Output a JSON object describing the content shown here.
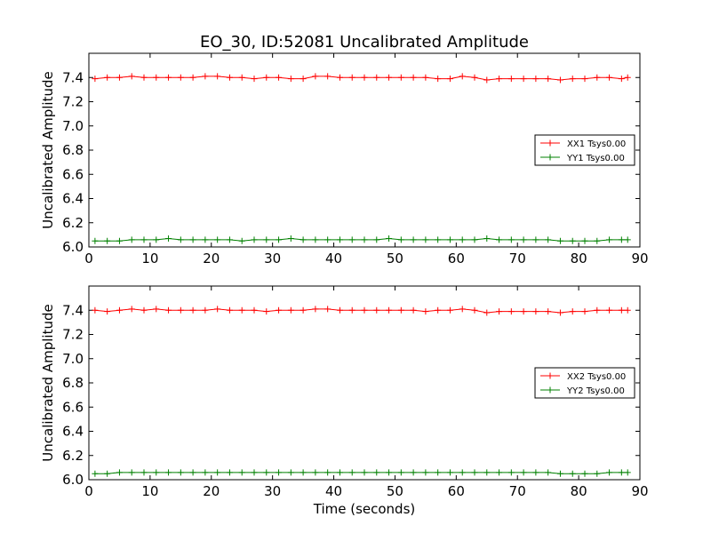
{
  "chart_data": [
    {
      "type": "line",
      "title": "EO_30, ID:52081 Uncalibrated Amplitude",
      "xlabel": "",
      "ylabel": "Uncalibrated Amplitude",
      "xlim": [
        0,
        90
      ],
      "ylim": [
        6.0,
        7.6
      ],
      "xticks": [
        "0",
        "10",
        "20",
        "30",
        "40",
        "50",
        "60",
        "70",
        "80",
        "90"
      ],
      "yticks": [
        "6.0",
        "6.2",
        "6.4",
        "6.6",
        "6.8",
        "7.0",
        "7.2",
        "7.4"
      ],
      "legend": "center-right",
      "series": [
        {
          "name": "XX1 Tsys0.00",
          "color": "#ff0000",
          "x": [
            1,
            3,
            5,
            7,
            9,
            11,
            13,
            15,
            17,
            19,
            21,
            23,
            25,
            27,
            29,
            31,
            33,
            35,
            37,
            39,
            41,
            43,
            45,
            47,
            49,
            51,
            53,
            55,
            57,
            59,
            61,
            63,
            65,
            67,
            69,
            71,
            73,
            75,
            77,
            79,
            81,
            83,
            85,
            87,
            88
          ],
          "y": [
            7.39,
            7.4,
            7.4,
            7.41,
            7.4,
            7.4,
            7.4,
            7.4,
            7.4,
            7.41,
            7.41,
            7.4,
            7.4,
            7.39,
            7.4,
            7.4,
            7.39,
            7.39,
            7.41,
            7.41,
            7.4,
            7.4,
            7.4,
            7.4,
            7.4,
            7.4,
            7.4,
            7.4,
            7.39,
            7.39,
            7.41,
            7.4,
            7.38,
            7.39,
            7.39,
            7.39,
            7.39,
            7.39,
            7.38,
            7.39,
            7.39,
            7.4,
            7.4,
            7.39,
            7.4
          ]
        },
        {
          "name": "YY1 Tsys0.00",
          "color": "#008000",
          "x": [
            1,
            3,
            5,
            7,
            9,
            11,
            13,
            15,
            17,
            19,
            21,
            23,
            25,
            27,
            29,
            31,
            33,
            35,
            37,
            39,
            41,
            43,
            45,
            47,
            49,
            51,
            53,
            55,
            57,
            59,
            61,
            63,
            65,
            67,
            69,
            71,
            73,
            75,
            77,
            79,
            81,
            83,
            85,
            87,
            88
          ],
          "y": [
            6.05,
            6.05,
            6.05,
            6.06,
            6.06,
            6.06,
            6.07,
            6.06,
            6.06,
            6.06,
            6.06,
            6.06,
            6.05,
            6.06,
            6.06,
            6.06,
            6.07,
            6.06,
            6.06,
            6.06,
            6.06,
            6.06,
            6.06,
            6.06,
            6.07,
            6.06,
            6.06,
            6.06,
            6.06,
            6.06,
            6.06,
            6.06,
            6.07,
            6.06,
            6.06,
            6.06,
            6.06,
            6.06,
            6.05,
            6.05,
            6.05,
            6.05,
            6.06,
            6.06,
            6.06
          ]
        }
      ]
    },
    {
      "type": "line",
      "title": "",
      "xlabel": "Time (seconds)",
      "ylabel": "Uncalibrated Amplitude",
      "xlim": [
        0,
        90
      ],
      "ylim": [
        6.0,
        7.6
      ],
      "xticks": [
        "0",
        "10",
        "20",
        "30",
        "40",
        "50",
        "60",
        "70",
        "80",
        "90"
      ],
      "yticks": [
        "6.0",
        "6.2",
        "6.4",
        "6.6",
        "6.8",
        "7.0",
        "7.2",
        "7.4"
      ],
      "legend": "center-right",
      "series": [
        {
          "name": "XX2 Tsys0.00",
          "color": "#ff0000",
          "x": [
            1,
            3,
            5,
            7,
            9,
            11,
            13,
            15,
            17,
            19,
            21,
            23,
            25,
            27,
            29,
            31,
            33,
            35,
            37,
            39,
            41,
            43,
            45,
            47,
            49,
            51,
            53,
            55,
            57,
            59,
            61,
            63,
            65,
            67,
            69,
            71,
            73,
            75,
            77,
            79,
            81,
            83,
            85,
            87,
            88
          ],
          "y": [
            7.4,
            7.39,
            7.4,
            7.41,
            7.4,
            7.41,
            7.4,
            7.4,
            7.4,
            7.4,
            7.41,
            7.4,
            7.4,
            7.4,
            7.39,
            7.4,
            7.4,
            7.4,
            7.41,
            7.41,
            7.4,
            7.4,
            7.4,
            7.4,
            7.4,
            7.4,
            7.4,
            7.39,
            7.4,
            7.4,
            7.41,
            7.4,
            7.38,
            7.39,
            7.39,
            7.39,
            7.39,
            7.39,
            7.38,
            7.39,
            7.39,
            7.4,
            7.4,
            7.4,
            7.4
          ]
        },
        {
          "name": "YY2 Tsys0.00",
          "color": "#008000",
          "x": [
            1,
            3,
            5,
            7,
            9,
            11,
            13,
            15,
            17,
            19,
            21,
            23,
            25,
            27,
            29,
            31,
            33,
            35,
            37,
            39,
            41,
            43,
            45,
            47,
            49,
            51,
            53,
            55,
            57,
            59,
            61,
            63,
            65,
            67,
            69,
            71,
            73,
            75,
            77,
            79,
            81,
            83,
            85,
            87,
            88
          ],
          "y": [
            6.05,
            6.05,
            6.06,
            6.06,
            6.06,
            6.06,
            6.06,
            6.06,
            6.06,
            6.06,
            6.06,
            6.06,
            6.06,
            6.06,
            6.06,
            6.06,
            6.06,
            6.06,
            6.06,
            6.06,
            6.06,
            6.06,
            6.06,
            6.06,
            6.06,
            6.06,
            6.06,
            6.06,
            6.06,
            6.06,
            6.06,
            6.06,
            6.06,
            6.06,
            6.06,
            6.06,
            6.06,
            6.06,
            6.05,
            6.05,
            6.05,
            6.05,
            6.06,
            6.06,
            6.06
          ]
        }
      ]
    }
  ]
}
